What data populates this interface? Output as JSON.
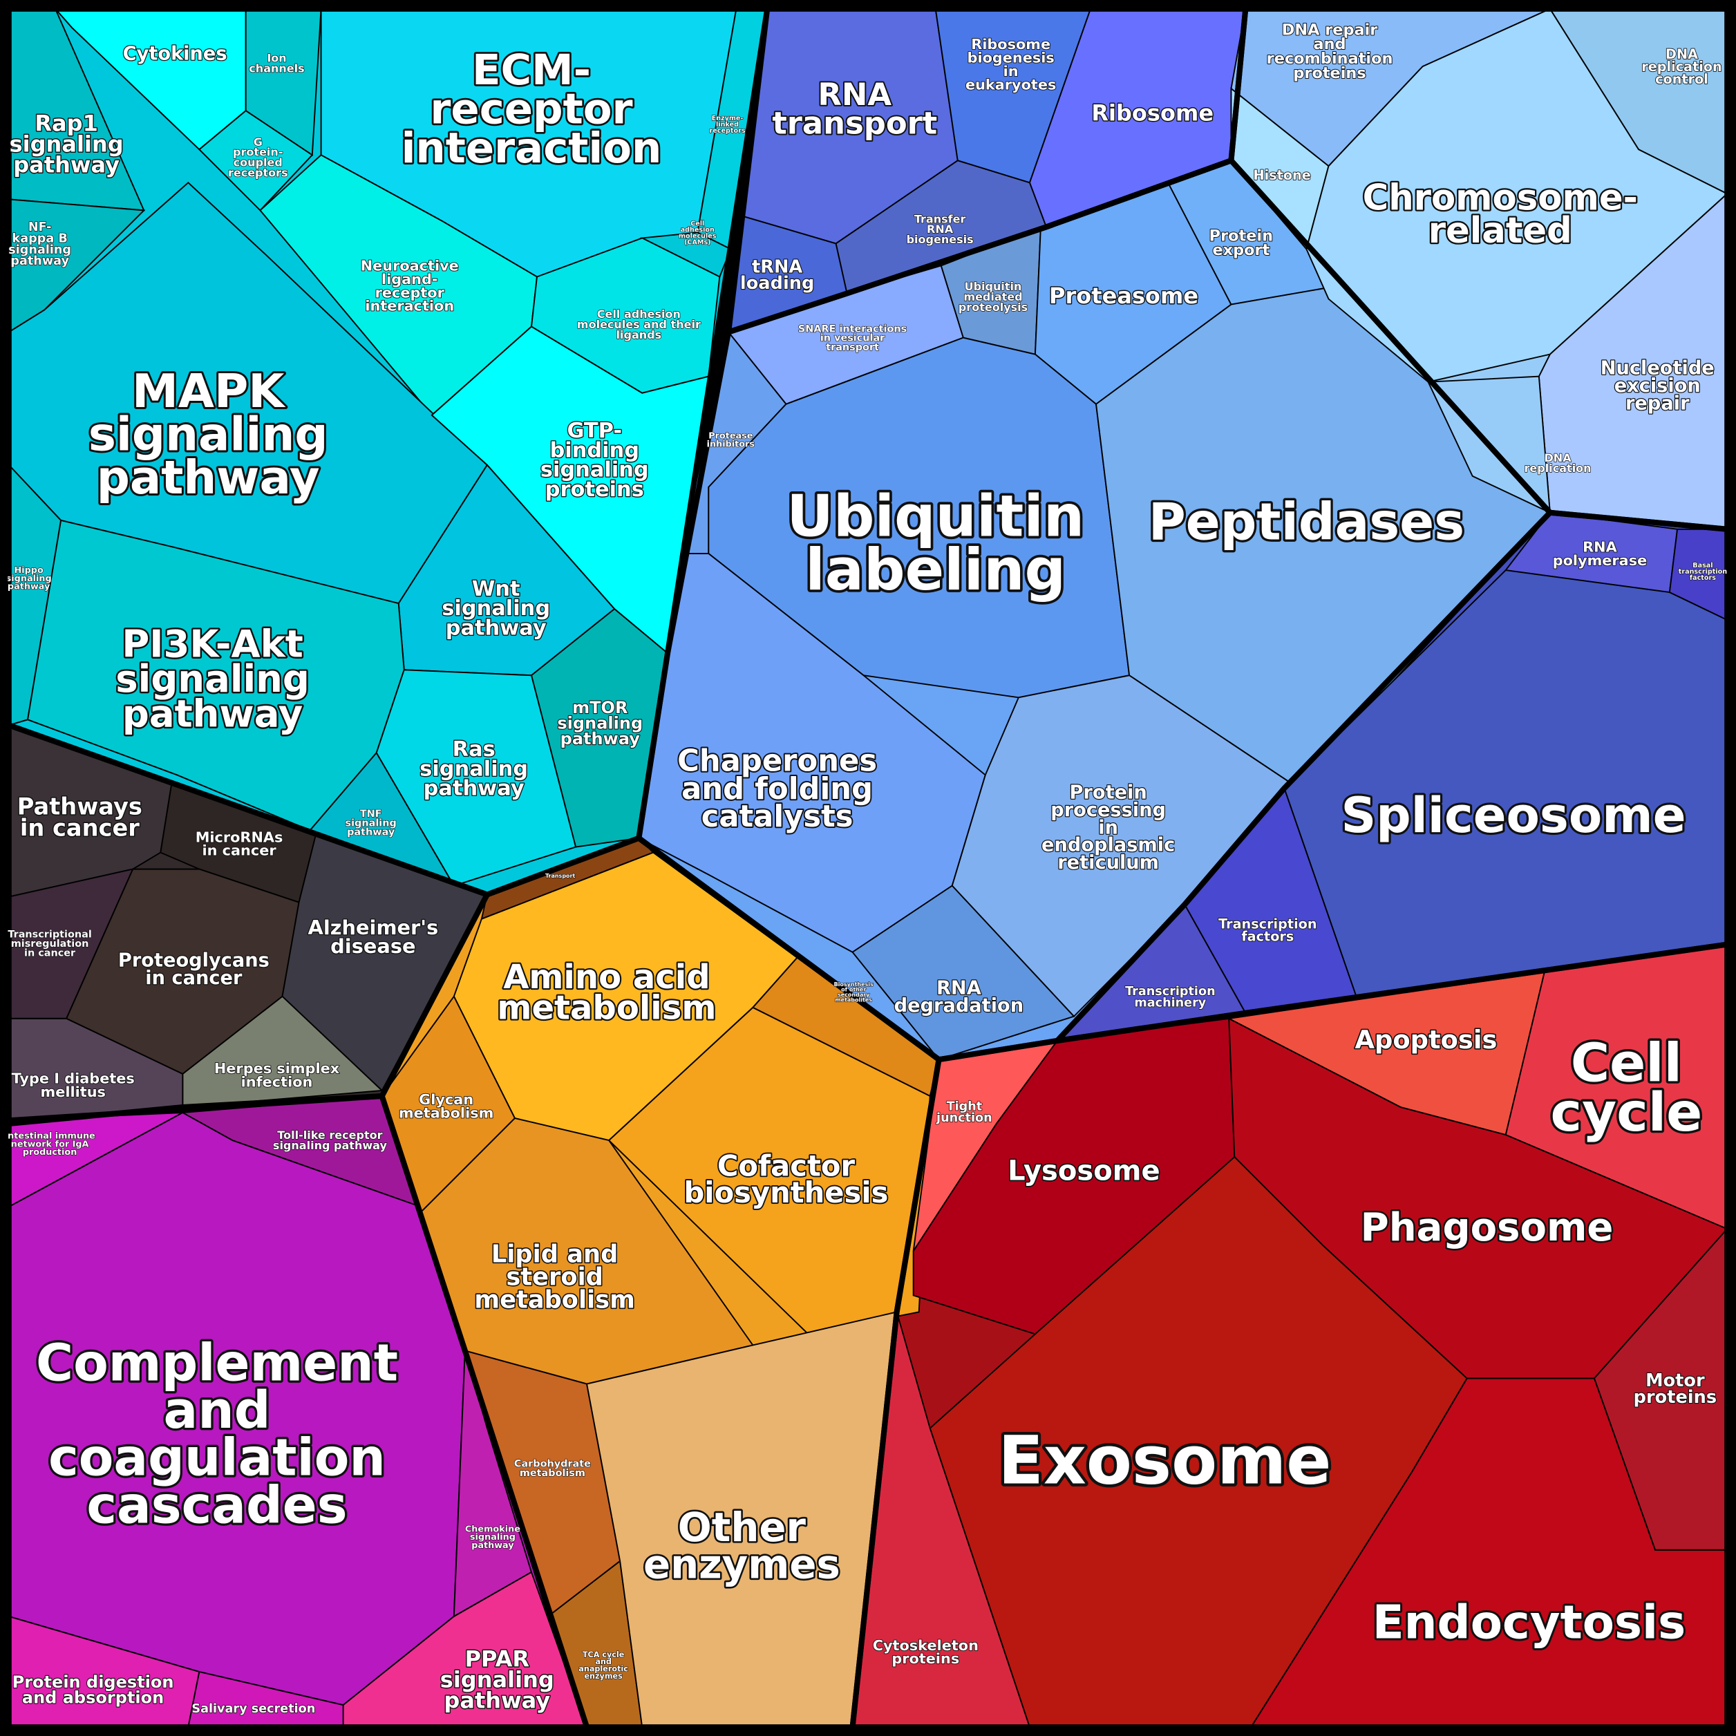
{
  "colors": {
    "signaling": "#00c8dc",
    "cancer": "#332a2c",
    "immune": "#b418b8",
    "metabolism": "#f0a020",
    "rna": "#5870e0",
    "protein": "#6aa4f4",
    "chromosome": "#98ccf8",
    "transcription": "#4450c0",
    "cellular": "#a81018"
  },
  "pathways": [
    {
      "id": "cytokines",
      "lines": [
        "Cytokines"
      ],
      "color": "#00ffff"
    },
    {
      "id": "ion-channels",
      "lines": [
        "Ion",
        "channels"
      ],
      "color": "#00c4cc"
    },
    {
      "id": "gpcr",
      "lines": [
        "G",
        "protein-",
        "coupled",
        "receptors"
      ],
      "color": "#00d8e0"
    },
    {
      "id": "ecm",
      "lines": [
        "ECM-",
        "receptor",
        "interaction"
      ],
      "color": "#0ad8f2"
    },
    {
      "id": "enzyme-linked",
      "lines": [
        "Enzyme-",
        "linked",
        "receptors"
      ],
      "color": "#00d0e0"
    },
    {
      "id": "cams",
      "lines": [
        "Cell",
        "adhesion",
        "molecules",
        "(CAMs)"
      ],
      "color": "#00c8d8"
    },
    {
      "id": "rap1",
      "lines": [
        "Rap1",
        "signaling",
        "pathway"
      ],
      "color": "#00bcc4"
    },
    {
      "id": "nfkb",
      "lines": [
        "NF-",
        "kappa B",
        "signaling",
        "pathway"
      ],
      "color": "#00b8c0"
    },
    {
      "id": "neuroactive",
      "lines": [
        "Neuroactive",
        "ligand-",
        "receptor",
        "interaction"
      ],
      "color": "#00f0e8"
    },
    {
      "id": "cam-ligands",
      "lines": [
        "Cell adhesion",
        "molecules and their",
        "ligands"
      ],
      "color": "#00e4e8"
    },
    {
      "id": "mapk",
      "lines": [
        "MAPK",
        "signaling",
        "pathway"
      ],
      "color": "#00c4dc"
    },
    {
      "id": "gtp",
      "lines": [
        "GTP-",
        "binding",
        "signaling",
        "proteins"
      ],
      "color": "#00ffff"
    },
    {
      "id": "hippo",
      "lines": [
        "Hippo",
        "signaling",
        "pathway"
      ],
      "color": "#00c0cc"
    },
    {
      "id": "wnt",
      "lines": [
        "Wnt",
        "signaling",
        "pathway"
      ],
      "color": "#00c4e0"
    },
    {
      "id": "pi3k",
      "lines": [
        "PI3K-Akt",
        "signaling",
        "pathway"
      ],
      "color": "#00c8d0"
    },
    {
      "id": "mtor",
      "lines": [
        "mTOR",
        "signaling",
        "pathway"
      ],
      "color": "#00b4b4"
    },
    {
      "id": "ras",
      "lines": [
        "Ras",
        "signaling",
        "pathway"
      ],
      "color": "#00d8e8"
    },
    {
      "id": "tnf",
      "lines": [
        "TNF",
        "signaling",
        "pathway"
      ],
      "color": "#00b8cc"
    },
    {
      "id": "pathways-cancer",
      "lines": [
        "Pathways",
        "in cancer"
      ],
      "color": "#3a3236"
    },
    {
      "id": "micrornas",
      "lines": [
        "MicroRNAs",
        "in cancer"
      ],
      "color": "#2e2624"
    },
    {
      "id": "transcriptional-misregulation",
      "lines": [
        "Transcriptional",
        "misregulation",
        "in cancer"
      ],
      "color": "#3e2a3a"
    },
    {
      "id": "proteoglycans",
      "lines": [
        "Proteoglycans",
        "in cancer"
      ],
      "color": "#3e302c"
    },
    {
      "id": "alzheimer",
      "lines": [
        "Alzheimer's",
        "disease"
      ],
      "color": "#3c3a44"
    },
    {
      "id": "herpes",
      "lines": [
        "Herpes simplex",
        "infection"
      ],
      "color": "#7a8070"
    },
    {
      "id": "diabetes",
      "lines": [
        "Type I diabetes",
        "mellitus"
      ],
      "color": "#554458"
    },
    {
      "id": "intestinal",
      "lines": [
        "Intestinal immune",
        "network for IgA",
        "production"
      ],
      "color": "#cc18c8"
    },
    {
      "id": "toll-like",
      "lines": [
        "Toll-like receptor",
        "signaling pathway"
      ],
      "color": "#a0189a"
    },
    {
      "id": "complement",
      "lines": [
        "Complement",
        "and",
        "coagulation",
        "cascades"
      ],
      "color": "#b818c0"
    },
    {
      "id": "chemokine",
      "lines": [
        "Chemokine",
        "signaling",
        "pathway"
      ],
      "color": "#c020b0"
    },
    {
      "id": "ppar",
      "lines": [
        "PPAR",
        "signaling",
        "pathway"
      ],
      "color": "#f03090"
    },
    {
      "id": "protein-digestion",
      "lines": [
        "Protein digestion",
        "and absorption"
      ],
      "color": "#e020b0"
    },
    {
      "id": "salivary",
      "lines": [
        "Salivary secretion"
      ],
      "color": "#d018b8"
    },
    {
      "id": "transport",
      "lines": [
        "Transport"
      ],
      "color": "#8b4513"
    },
    {
      "id": "amino-acid",
      "lines": [
        "Amino acid",
        "metabolism"
      ],
      "color": "#ffb820"
    },
    {
      "id": "secondary-metabolites",
      "lines": [
        "Biosynthesis",
        "of other",
        "secondary",
        "metabolites"
      ],
      "color": "#e08818"
    },
    {
      "id": "glycan",
      "lines": [
        "Glycan",
        "metabolism"
      ],
      "color": "#e8901c"
    },
    {
      "id": "cofactor",
      "lines": [
        "Cofactor",
        "biosynthesis"
      ],
      "color": "#f5a21c"
    },
    {
      "id": "lipid",
      "lines": [
        "Lipid and",
        "steroid",
        "metabolism"
      ],
      "color": "#e89422"
    },
    {
      "id": "carbohydrate",
      "lines": [
        "Carbohydrate",
        "metabolism"
      ],
      "color": "#c86624"
    },
    {
      "id": "tca",
      "lines": [
        "TCA cycle",
        "and",
        "anaplerotic",
        "enzymes"
      ],
      "color": "#b86a1c"
    },
    {
      "id": "other-enzymes",
      "lines": [
        "Other",
        "enzymes"
      ],
      "color": "#e8b470"
    },
    {
      "id": "rna-transport",
      "lines": [
        "RNA",
        "transport"
      ],
      "color": "#5a6ce0"
    },
    {
      "id": "ribosome-biogenesis",
      "lines": [
        "Ribosome",
        "biogenesis",
        "in",
        "eukaryotes"
      ],
      "color": "#4a78e8"
    },
    {
      "id": "ribosome",
      "lines": [
        "Ribosome"
      ],
      "color": "#6870ff"
    },
    {
      "id": "transfer-rna",
      "lines": [
        "Transfer",
        "RNA",
        "biogenesis"
      ],
      "color": "#5268c8"
    },
    {
      "id": "trna-loading",
      "lines": [
        "tRNA",
        "loading"
      ],
      "color": "#4a68d8"
    },
    {
      "id": "ubiquitin-proteolysis",
      "lines": [
        "Ubiquitin",
        "mediated",
        "proteolysis"
      ],
      "color": "#6a9ad8"
    },
    {
      "id": "snare",
      "lines": [
        "SNARE interactions",
        "in vesicular",
        "transport"
      ],
      "color": "#88aaff"
    },
    {
      "id": "proteasome",
      "lines": [
        "Proteasome"
      ],
      "color": "#6aaaf8"
    },
    {
      "id": "protein-export",
      "lines": [
        "Protein",
        "export"
      ],
      "color": "#70b0f8"
    },
    {
      "id": "protease-inhibitors",
      "lines": [
        "Protease",
        "inhibitors"
      ],
      "color": "#6aa0f0"
    },
    {
      "id": "ubiquitin-labeling",
      "lines": [
        "Ubiquitin",
        "labeling"
      ],
      "color": "#5d98f0"
    },
    {
      "id": "peptidases",
      "lines": [
        "Peptidases"
      ],
      "color": "#78b0f0"
    },
    {
      "id": "chaperones",
      "lines": [
        "Chaperones",
        "and folding",
        "catalysts"
      ],
      "color": "#6ea0f8"
    },
    {
      "id": "protein-processing",
      "lines": [
        "Protein",
        "processing",
        "in",
        "endoplasmic",
        "reticulum"
      ],
      "color": "#80b0f0"
    },
    {
      "id": "rna-degradation",
      "lines": [
        "RNA",
        "degradation"
      ],
      "color": "#6096e0"
    },
    {
      "id": "dna-repair",
      "lines": [
        "DNA repair",
        "and",
        "recombination",
        "proteins"
      ],
      "color": "#88bbf8"
    },
    {
      "id": "dna-replication-control",
      "lines": [
        "DNA",
        "replication",
        "control"
      ],
      "color": "#90c8f0"
    },
    {
      "id": "histone",
      "lines": [
        "Histone"
      ],
      "color": "#a8e0ff"
    },
    {
      "id": "chromosome",
      "lines": [
        "Chromosome-",
        "related"
      ],
      "color": "#a0d8ff"
    },
    {
      "id": "nucleotide-excision",
      "lines": [
        "Nucleotide",
        "excision",
        "repair"
      ],
      "color": "#a8c8ff"
    },
    {
      "id": "dna-replication",
      "lines": [
        "DNA",
        "replication"
      ],
      "color": "#98ccf8"
    },
    {
      "id": "rna-polymerase",
      "lines": [
        "RNA",
        "polymerase"
      ],
      "color": "#5858d8"
    },
    {
      "id": "basal-tf",
      "lines": [
        "Basal",
        "transcription",
        "factors"
      ],
      "color": "#4840c8"
    },
    {
      "id": "spliceosome",
      "lines": [
        "Spliceosome"
      ],
      "color": "#4458c0"
    },
    {
      "id": "transcription-factors",
      "lines": [
        "Transcription",
        "factors"
      ],
      "color": "#4848d0"
    },
    {
      "id": "transcription-machinery",
      "lines": [
        "Transcription",
        "machinery"
      ],
      "color": "#5050c8"
    },
    {
      "id": "tight-junction",
      "lines": [
        "Tight",
        "junction"
      ],
      "color": "#ff5858"
    },
    {
      "id": "apoptosis",
      "lines": [
        "Apoptosis"
      ],
      "color": "#f05040"
    },
    {
      "id": "cell-cycle",
      "lines": [
        "Cell",
        "cycle"
      ],
      "color": "#e83848"
    },
    {
      "id": "lysosome",
      "lines": [
        "Lysosome"
      ],
      "color": "#b00018"
    },
    {
      "id": "phagosome",
      "lines": [
        "Phagosome"
      ],
      "color": "#b80818"
    },
    {
      "id": "motor-proteins",
      "lines": [
        "Motor",
        "proteins"
      ],
      "color": "#b01828"
    },
    {
      "id": "exosome",
      "lines": [
        "Exosome"
      ],
      "color": "#b81810"
    },
    {
      "id": "cytoskeleton",
      "lines": [
        "Cytoskeleton",
        "proteins"
      ],
      "color": "#d82840"
    },
    {
      "id": "endocytosis",
      "lines": [
        "Endocytosis"
      ],
      "color": "#c00818"
    }
  ]
}
